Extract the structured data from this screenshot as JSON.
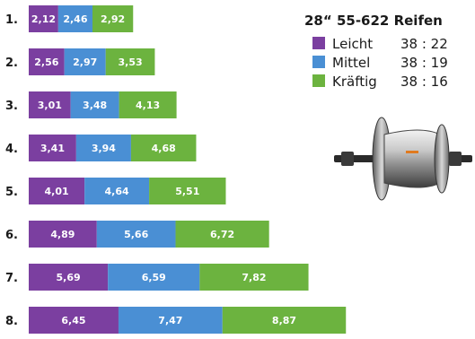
{
  "chart_data": {
    "type": "bar",
    "stacked": true,
    "orientation": "horizontal",
    "title": "28“ 55-622 Reifen",
    "categories": [
      "1.",
      "2.",
      "3.",
      "4.",
      "5.",
      "6.",
      "7.",
      "8."
    ],
    "series": [
      {
        "name": "Leicht",
        "ratio": "38 : 22",
        "color": "#7b3fa0",
        "values": [
          2.12,
          2.56,
          3.01,
          3.41,
          4.01,
          4.89,
          5.69,
          6.45
        ],
        "labels": [
          "2,12",
          "2,56",
          "3,01",
          "3,41",
          "4,01",
          "4,89",
          "5,69",
          "6,45"
        ]
      },
      {
        "name": "Mittel",
        "ratio": "38 : 19",
        "color": "#4a8fd4",
        "values": [
          2.46,
          2.97,
          3.48,
          3.94,
          4.64,
          5.66,
          6.59,
          7.47
        ],
        "labels": [
          "2,46",
          "2,97",
          "3,48",
          "3,94",
          "4,64",
          "5,66",
          "6,59",
          "7,47"
        ]
      },
      {
        "name": "Kräftig",
        "ratio": "38 : 16",
        "color": "#6cb33f",
        "values": [
          2.92,
          3.53,
          4.13,
          4.68,
          5.51,
          6.72,
          7.82,
          8.87
        ],
        "labels": [
          "2,92",
          "3,53",
          "4,13",
          "4,68",
          "5,51",
          "6,72",
          "7,82",
          "8,87"
        ]
      }
    ],
    "legend_position": "top-right",
    "grid": false,
    "illustration": "gear-hub"
  }
}
